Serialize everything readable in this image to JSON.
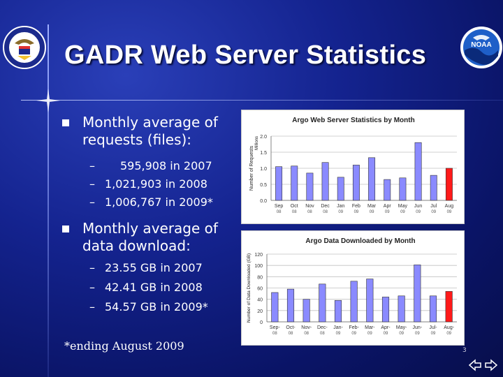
{
  "slide": {
    "title": "GADR Web Server Statistics",
    "page_number": "3",
    "footnote": "*ending August 2009"
  },
  "bullets": [
    {
      "label": "Monthly average of requests (files):",
      "items": [
        "595,908 in 2007",
        "1,021,903 in 2008",
        "1,006,767 in 2009*"
      ]
    },
    {
      "label": "Monthly average of data download:",
      "items": [
        "23.55 GB in 2007",
        "42.41 GB in 2008",
        "54.57 GB in 2009*"
      ]
    }
  ],
  "dash_symbol": "–",
  "logos": {
    "left": "department-of-commerce-seal",
    "right_text": "NOAA"
  },
  "colors": {
    "bar_normal": "#8a8aff",
    "bar_highlight": "#ff1a1a",
    "grid": "#c0c0c0",
    "background": "#14238f"
  },
  "chart_data": [
    {
      "type": "bar",
      "title": "Argo Web Server Statistics by Month",
      "ylabel": "Number of Requests",
      "yunit": "Millions",
      "ylim": [
        0,
        2
      ],
      "yticks": [
        "0.0",
        "0.5",
        "1.0",
        "1.5",
        "2.0"
      ],
      "ytick_values": [
        0,
        0.5,
        1.0,
        1.5,
        2.0
      ],
      "categories": [
        [
          "Sep",
          "08"
        ],
        [
          "Oct",
          "08"
        ],
        [
          "Nov",
          "08"
        ],
        [
          "Dec",
          "08"
        ],
        [
          "Jan",
          "09"
        ],
        [
          "Feb",
          "09"
        ],
        [
          "Mar",
          "09"
        ],
        [
          "Apr",
          "09"
        ],
        [
          "May",
          "09"
        ],
        [
          "Jun",
          "09"
        ],
        [
          "Jul",
          "09"
        ],
        [
          "Aug",
          "09"
        ]
      ],
      "values": [
        1.05,
        1.07,
        0.85,
        1.18,
        0.72,
        1.1,
        1.33,
        0.65,
        0.7,
        1.8,
        0.78,
        1.0
      ],
      "highlight_index": 11,
      "grid": true
    },
    {
      "type": "bar",
      "title": "Argo Data Downloaded by Month",
      "ylabel": "Number of Data Downloaded (GB)",
      "ylim": [
        0,
        120
      ],
      "yticks": [
        "0",
        "20",
        "40",
        "60",
        "80",
        "100",
        "120"
      ],
      "ytick_values": [
        0,
        20,
        40,
        60,
        80,
        100,
        120
      ],
      "categories": [
        [
          "Sep-",
          "08"
        ],
        [
          "Oct-",
          "08"
        ],
        [
          "Nov-",
          "08"
        ],
        [
          "Dec-",
          "08"
        ],
        [
          "Jan-",
          "09"
        ],
        [
          "Feb-",
          "09"
        ],
        [
          "Mar-",
          "09"
        ],
        [
          "Apr-",
          "09"
        ],
        [
          "May-",
          "09"
        ],
        [
          "Jun-",
          "09"
        ],
        [
          "Jul-",
          "09"
        ],
        [
          "Aug-",
          "09"
        ]
      ],
      "values": [
        52,
        58,
        40,
        67,
        38,
        72,
        76,
        44,
        46,
        101,
        46,
        54
      ],
      "highlight_index": 11,
      "grid": true
    }
  ]
}
